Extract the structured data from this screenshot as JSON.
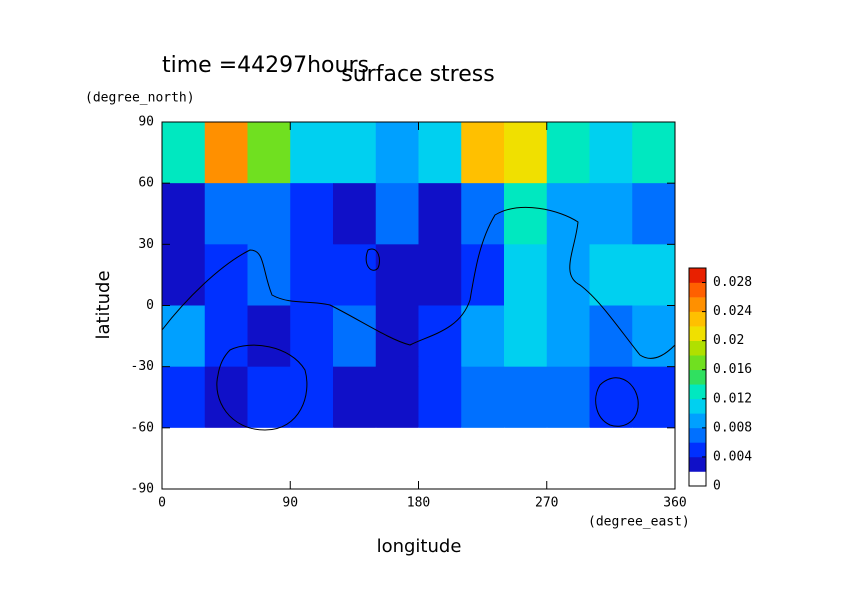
{
  "chart_data": {
    "type": "contour",
    "time_label": "time =44297hours",
    "title": "surface stress",
    "y_unit": "(degree_north)",
    "x_unit": "(degree_east)",
    "xlabel": "longitude",
    "ylabel": "latitude",
    "xlim": [
      0,
      360
    ],
    "ylim": [
      -90,
      90
    ],
    "xticks": [
      0,
      90,
      180,
      270,
      360
    ],
    "yticks": [
      -90,
      -60,
      -30,
      0,
      30,
      60,
      90
    ],
    "x": [
      15,
      45,
      75,
      105,
      135,
      165,
      195,
      225,
      255,
      285,
      315,
      345
    ],
    "y": [
      75,
      45,
      15,
      -15,
      -45,
      -75
    ],
    "z": [
      [
        0.012,
        0.024,
        0.016,
        0.01,
        0.01,
        0.008,
        0.01,
        0.022,
        0.02,
        0.012,
        0.01,
        0.012
      ],
      [
        0.002,
        0.006,
        0.006,
        0.004,
        0.002,
        0.006,
        0.003,
        0.006,
        0.012,
        0.008,
        0.008,
        0.006
      ],
      [
        0.003,
        0.004,
        0.006,
        0.004,
        0.004,
        0.002,
        0.002,
        0.004,
        0.01,
        0.008,
        0.01,
        0.01
      ],
      [
        0.008,
        0.004,
        0.003,
        0.004,
        0.006,
        0.003,
        0.004,
        0.008,
        0.01,
        0.008,
        0.006,
        0.008
      ],
      [
        0.004,
        0.002,
        0.004,
        0.004,
        0.002,
        0.002,
        0.004,
        0.006,
        0.006,
        0.006,
        0.004,
        0.004
      ],
      [
        0,
        0,
        0,
        0,
        0,
        0,
        0,
        0,
        0,
        0,
        0,
        0
      ]
    ],
    "clim": [
      0,
      0.03
    ],
    "cticks": [
      0,
      0.004,
      0.008,
      0.012,
      0.016,
      0.02,
      0.024,
      0.028
    ],
    "colors": [
      "#ffffff",
      "#1010c8",
      "#0030ff",
      "#0070ff",
      "#00a0ff",
      "#00d0f0",
      "#00e8c0",
      "#30e060",
      "#70e020",
      "#b0e000",
      "#f0e000",
      "#ffc000",
      "#ff9000",
      "#ff6000",
      "#e82000"
    ]
  }
}
